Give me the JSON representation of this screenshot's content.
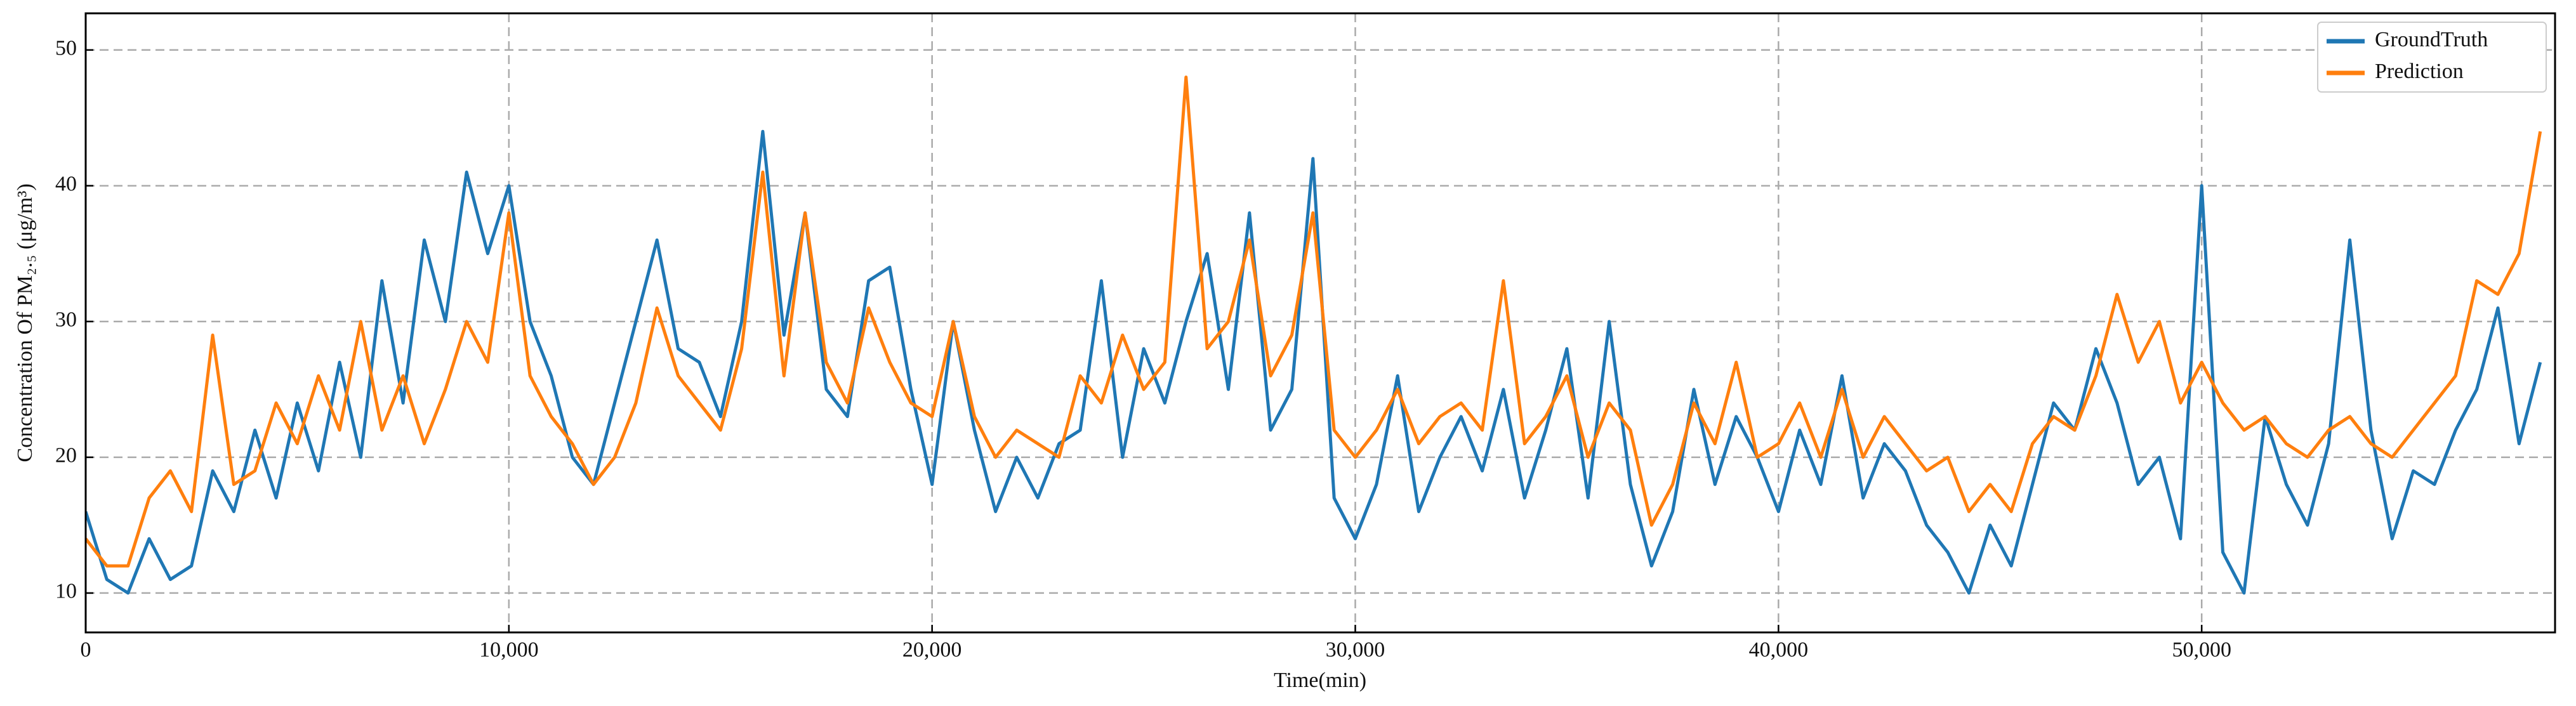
{
  "chart_data": {
    "type": "line",
    "xlabel": "Time(min)",
    "ylabel": "Concentration Of PM₂.₅ (μg/m³)",
    "x": [
      0,
      500,
      1000,
      1500,
      2000,
      2500,
      3000,
      3500,
      4000,
      4500,
      5000,
      5500,
      6000,
      6500,
      7000,
      7500,
      8000,
      8500,
      9000,
      9500,
      10000,
      10500,
      11000,
      11500,
      12000,
      12500,
      13000,
      13500,
      14000,
      14500,
      15000,
      15500,
      16000,
      16500,
      17000,
      17500,
      18000,
      18500,
      19000,
      19500,
      20000,
      20500,
      21000,
      21500,
      22000,
      22500,
      23000,
      23500,
      24000,
      24500,
      25000,
      25500,
      26000,
      26500,
      27000,
      27500,
      28000,
      28500,
      29000,
      29500,
      30000,
      30500,
      31000,
      31500,
      32000,
      32500,
      33000,
      33500,
      34000,
      34500,
      35000,
      35500,
      36000,
      36500,
      37000,
      37500,
      38000,
      38500,
      39000,
      39500,
      40000,
      40500,
      41000,
      41500,
      42000,
      42500,
      43000,
      43500,
      44000,
      44500,
      45000,
      45500,
      46000,
      46500,
      47000,
      47500,
      48000,
      48500,
      49000,
      49500,
      50000,
      50500,
      51000,
      51500,
      52000,
      52500,
      53000,
      53500,
      54000,
      54500,
      55000,
      55500,
      56000,
      56500,
      57000,
      57500,
      58000
    ],
    "series": [
      {
        "name": "GroundTruth",
        "color": "#1f77b4",
        "values": [
          16,
          11,
          10,
          14,
          11,
          12,
          19,
          16,
          22,
          17,
          24,
          19,
          27,
          20,
          33,
          24,
          36,
          30,
          41,
          35,
          40,
          30,
          26,
          20,
          18,
          24,
          30,
          36,
          28,
          27,
          23,
          30,
          44,
          29,
          38,
          25,
          23,
          33,
          34,
          25,
          18,
          30,
          22,
          16,
          20,
          17,
          21,
          22,
          33,
          20,
          28,
          24,
          30,
          35,
          25,
          38,
          22,
          25,
          42,
          17,
          14,
          18,
          26,
          16,
          20,
          23,
          19,
          25,
          17,
          22,
          28,
          17,
          30,
          18,
          12,
          16,
          25,
          18,
          23,
          20,
          16,
          22,
          18,
          26,
          17,
          21,
          19,
          15,
          13,
          10,
          15,
          12,
          18,
          24,
          22,
          28,
          24,
          18,
          20,
          14,
          40,
          13,
          10,
          23,
          18,
          15,
          21,
          36,
          22,
          14,
          19,
          18,
          22,
          25,
          31,
          21,
          27
        ]
      },
      {
        "name": "Prediction",
        "color": "#ff7f0e",
        "values": [
          14,
          12,
          12,
          17,
          19,
          16,
          29,
          18,
          19,
          24,
          21,
          26,
          22,
          30,
          22,
          26,
          21,
          25,
          30,
          27,
          38,
          26,
          23,
          21,
          18,
          20,
          24,
          31,
          26,
          24,
          22,
          28,
          41,
          26,
          38,
          27,
          24,
          31,
          27,
          24,
          23,
          30,
          23,
          20,
          22,
          21,
          20,
          26,
          24,
          29,
          25,
          27,
          48,
          28,
          30,
          36,
          26,
          29,
          38,
          22,
          20,
          22,
          25,
          21,
          23,
          24,
          22,
          33,
          21,
          23,
          26,
          20,
          24,
          22,
          15,
          18,
          24,
          21,
          27,
          20,
          21,
          24,
          20,
          25,
          20,
          23,
          21,
          19,
          20,
          16,
          18,
          16,
          21,
          23,
          22,
          26,
          32,
          27,
          30,
          24,
          27,
          24,
          22,
          23,
          21,
          20,
          22,
          23,
          21,
          20,
          22,
          24,
          26,
          33,
          32,
          35,
          44
        ]
      }
    ],
    "xlim": [
      0,
      58350
    ],
    "ylim": [
      7.1,
      52.7
    ],
    "xticks": [
      0,
      {
        "value": 10000,
        "label": "10,000"
      },
      {
        "value": 20000,
        "label": "20,000"
      },
      {
        "value": 30000,
        "label": "30,000"
      },
      {
        "value": 40000,
        "label": "40,000"
      },
      {
        "value": 50000,
        "label": "50,000"
      }
    ],
    "yticks": [
      10,
      20,
      30,
      40,
      50
    ],
    "grid": true,
    "legend": "upper right"
  }
}
